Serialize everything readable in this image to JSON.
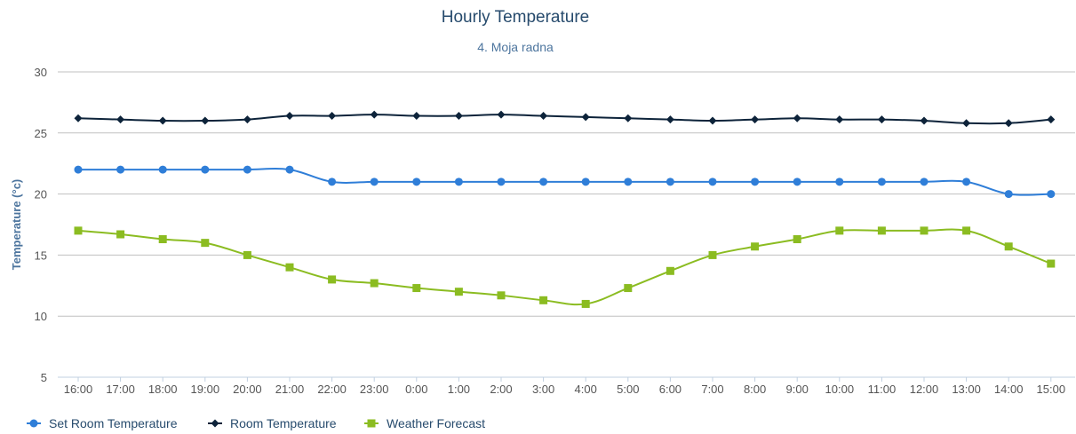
{
  "chart_data": {
    "type": "line",
    "title": "Hourly Temperature",
    "subtitle": "4. Moja radna",
    "xlabel": "",
    "ylabel": "Temperature (°c)",
    "ylim": [
      5,
      30
    ],
    "yticks": [
      5,
      10,
      15,
      20,
      25,
      30
    ],
    "grid": true,
    "legend_position": "bottom-left",
    "categories": [
      "16:00",
      "17:00",
      "18:00",
      "19:00",
      "20:00",
      "21:00",
      "22:00",
      "23:00",
      "0:00",
      "1:00",
      "2:00",
      "3:00",
      "4:00",
      "5:00",
      "6:00",
      "7:00",
      "8:00",
      "9:00",
      "10:00",
      "11:00",
      "12:00",
      "13:00",
      "14:00",
      "15:00"
    ],
    "series": [
      {
        "name": "Set Room Temperature",
        "color": "#2f7ed8",
        "marker": "circle",
        "values": [
          22,
          22,
          22,
          22,
          22,
          22,
          21,
          21,
          21,
          21,
          21,
          21,
          21,
          21,
          21,
          21,
          21,
          21,
          21,
          21,
          21,
          21,
          20,
          20
        ]
      },
      {
        "name": "Room Temperature",
        "color": "#0d233a",
        "marker": "diamond",
        "values": [
          26.2,
          26.1,
          26,
          26,
          26.1,
          26.4,
          26.4,
          26.5,
          26.4,
          26.4,
          26.5,
          26.4,
          26.3,
          26.2,
          26.1,
          26,
          26.1,
          26.2,
          26.1,
          26.1,
          26,
          25.8,
          25.8,
          26.1
        ]
      },
      {
        "name": "Weather Forecast",
        "color": "#8bbc21",
        "marker": "square",
        "values": [
          17,
          16.7,
          16.3,
          16,
          15,
          14,
          13,
          12.7,
          12.3,
          12,
          11.7,
          11.3,
          11,
          12.3,
          13.7,
          15,
          15.7,
          16.3,
          17,
          17,
          17,
          17,
          15.7,
          14.3
        ]
      }
    ]
  }
}
